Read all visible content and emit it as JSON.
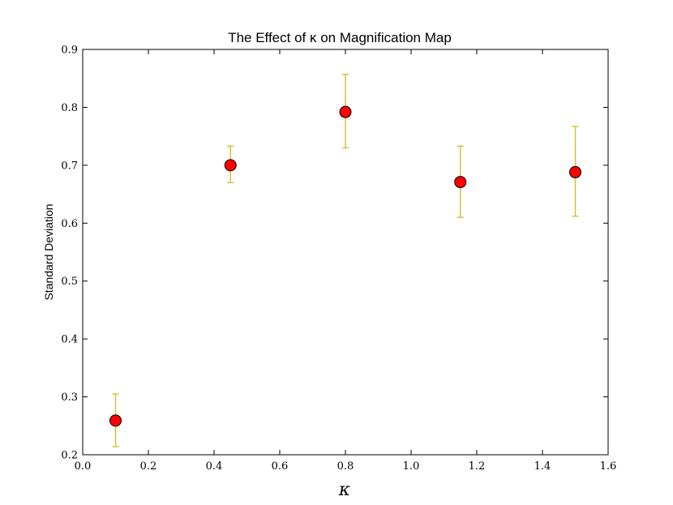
{
  "chart_data": {
    "type": "scatter",
    "title": "The Effect of κ on Magnification Map",
    "xlabel": "κ",
    "ylabel": "Standard Deviation",
    "xlim": [
      0.0,
      1.6
    ],
    "ylim": [
      0.2,
      0.9
    ],
    "x_ticks": [
      "0.0",
      "0.2",
      "0.4",
      "0.6",
      "0.8",
      "1.0",
      "1.2",
      "1.4",
      "1.6"
    ],
    "y_ticks": [
      "0.2",
      "0.3",
      "0.4",
      "0.5",
      "0.6",
      "0.7",
      "0.8",
      "0.9"
    ],
    "grid": false,
    "marker_color": "#ff0000",
    "errorbar_color": "#d4c23a",
    "points": [
      {
        "x": 0.1,
        "y": 0.259,
        "err_low": 0.214,
        "err_high": 0.305
      },
      {
        "x": 0.45,
        "y": 0.7,
        "err_low": 0.67,
        "err_high": 0.733
      },
      {
        "x": 0.8,
        "y": 0.792,
        "err_low": 0.73,
        "err_high": 0.857
      },
      {
        "x": 1.15,
        "y": 0.671,
        "err_low": 0.61,
        "err_high": 0.733
      },
      {
        "x": 1.5,
        "y": 0.688,
        "err_low": 0.612,
        "err_high": 0.767
      }
    ]
  }
}
